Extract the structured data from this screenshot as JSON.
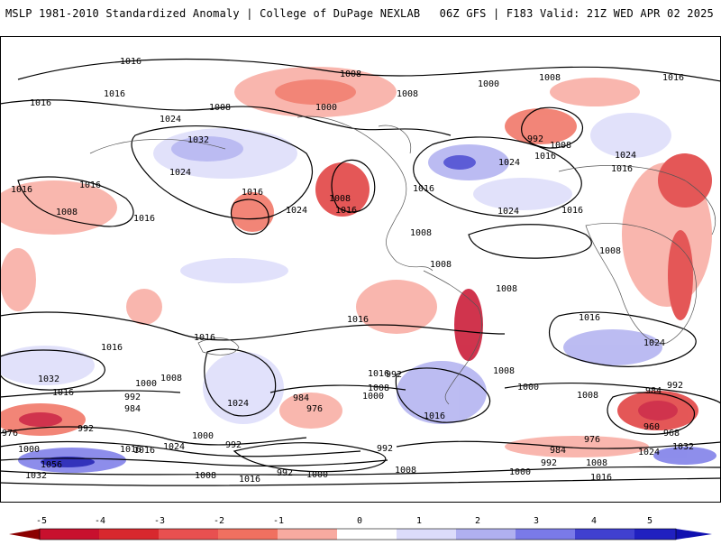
{
  "header": {
    "left": "MSLP 1981-2010 Standardized Anomaly | College of DuPage NEXLAB",
    "right": "06Z GFS | F183 Valid: 21Z WED APR 02 2025"
  },
  "isobar_labels": [
    "1016",
    "1016",
    "1016",
    "1008",
    "1008",
    "1000",
    "1008",
    "1000",
    "1008",
    "1016",
    "1024",
    "1032",
    "1024",
    "1016",
    "1016",
    "1024",
    "1008",
    "1016",
    "1016",
    "1008",
    "1016",
    "992",
    "1008",
    "1024",
    "1016",
    "1024",
    "1016",
    "1024",
    "1016",
    "1016",
    "1008",
    "1008",
    "1008",
    "1008",
    "1016",
    "1016",
    "1016",
    "1024",
    "1016",
    "1032",
    "1008",
    "1000",
    "1016",
    "992",
    "984",
    "1024",
    "984",
    "976",
    "1008",
    "1000",
    "1016",
    "992",
    "1000",
    "1008",
    "1016",
    "1008",
    "984",
    "992",
    "960",
    "968",
    "976",
    "1000",
    "1056",
    "1032",
    "992",
    "1016",
    "1024",
    "1000",
    "992",
    "992",
    "1008",
    "1016",
    "1000",
    "992",
    "1008",
    "1000",
    "984",
    "976",
    "992",
    "1008",
    "1016",
    "1024",
    "1032",
    "1016"
  ],
  "colorbar": {
    "ticks": [
      "-5",
      "-4",
      "-3",
      "-2",
      "-1",
      "0",
      "1",
      "2",
      "3",
      "4",
      "5"
    ],
    "colors": [
      "#8b0000",
      "#c8102e",
      "#e03a3a",
      "#f07060",
      "#f8aaa0",
      "#fde0dc",
      "#ffffff",
      "#dcdcfa",
      "#b0b0f0",
      "#7a7ae8",
      "#4040d0",
      "#1010b0"
    ]
  }
}
